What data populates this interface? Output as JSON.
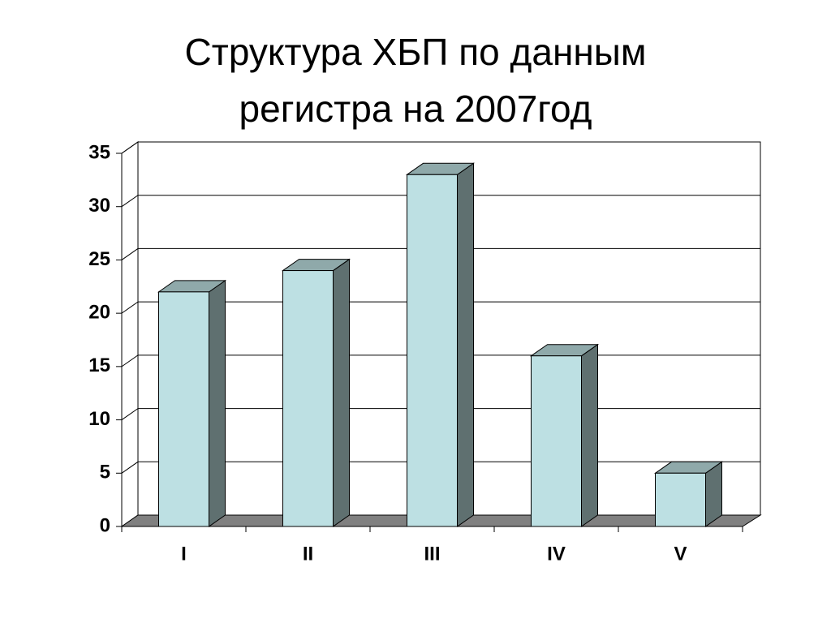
{
  "chart_data": {
    "type": "bar3d",
    "title": [
      "Структура ХБП по данным",
      "регистра на 2007год"
    ],
    "categories": [
      "I",
      "II",
      "III",
      "IV",
      "V"
    ],
    "values": [
      22,
      24,
      33,
      16,
      5
    ],
    "color": "#bde0e3",
    "ylim": [
      0,
      35
    ],
    "yticks": [
      0,
      5,
      10,
      15,
      20,
      25,
      30,
      35
    ],
    "grid": true
  }
}
